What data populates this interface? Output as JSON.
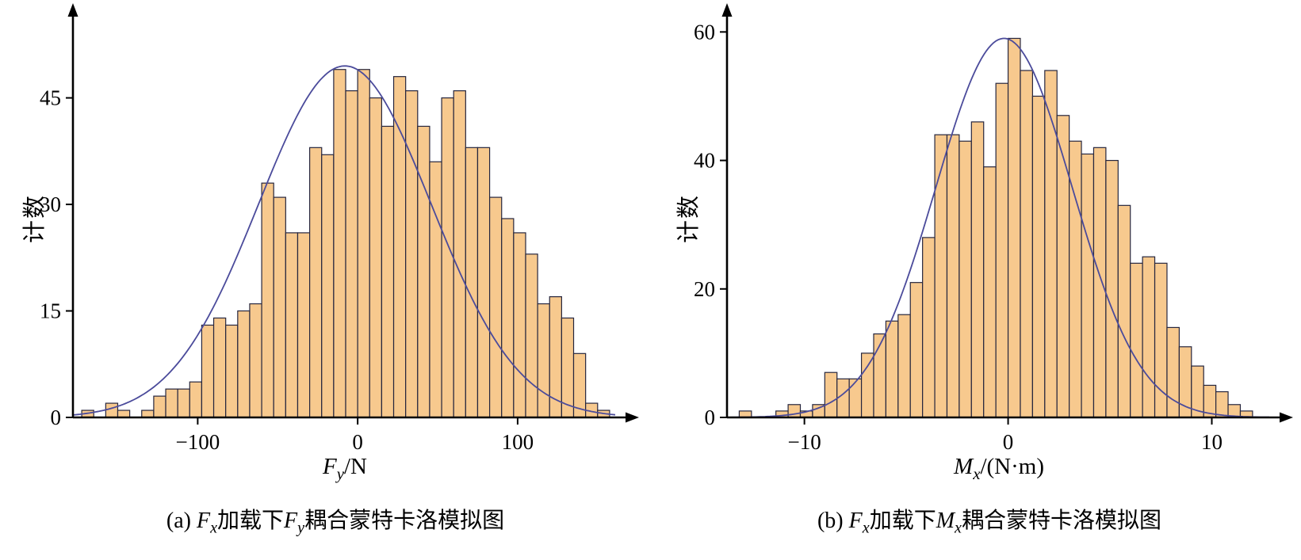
{
  "colors": {
    "background": "#ffffff",
    "bar_fill": "#f7c98e",
    "bar_stroke": "#26263e",
    "curve": "#4b4b9b",
    "axis": "#000000",
    "text": "#000000"
  },
  "chart_data": [
    {
      "type": "bar",
      "subtype": "histogram-with-gaussian-fit",
      "ylabel": "计数",
      "xlabel_parts": {
        "var": "F",
        "sub": "y",
        "rest": "/N"
      },
      "caption_parts": {
        "prefix": "(a) ",
        "var1": "F",
        "sub1": "x",
        "mid": "加载下",
        "var2": "F",
        "sub2": "y",
        "suffix": "耦合蒙特卡洛模拟图"
      },
      "x_ticks": [
        -100,
        0,
        100
      ],
      "y_ticks": [
        0,
        15,
        30,
        45
      ],
      "xlim": [
        -178,
        162
      ],
      "ylim": [
        0,
        57
      ],
      "grid": false,
      "legend": "none",
      "bin_start": -172.5,
      "bin_width": 7.5,
      "counts": [
        1,
        0,
        2,
        1,
        0,
        1,
        3,
        4,
        4,
        5,
        13,
        14,
        13,
        15,
        16,
        33,
        31,
        26,
        26,
        38,
        37,
        49,
        46,
        49,
        45,
        41,
        48,
        46,
        41,
        36,
        45,
        46,
        38,
        38,
        31,
        28,
        26,
        23,
        16,
        17,
        14,
        9,
        2,
        1
      ],
      "curve": {
        "amp": 49.5,
        "mean": -8,
        "sigma": 54
      }
    },
    {
      "type": "bar",
      "subtype": "histogram-with-gaussian-fit",
      "ylabel": "计数",
      "xlabel_parts": {
        "var": "M",
        "sub": "x",
        "rest": "/(N·m)"
      },
      "caption_parts": {
        "prefix": "(b) ",
        "var1": "F",
        "sub1": "x",
        "mid": "加载下",
        "var2": "M",
        "sub2": "x",
        "suffix": "耦合蒙特卡洛模拟图"
      },
      "x_ticks": [
        -10,
        0,
        10
      ],
      "y_ticks": [
        0,
        20,
        40,
        60
      ],
      "xlim": [
        -13.8,
        12.9
      ],
      "ylim": [
        0,
        63
      ],
      "grid": false,
      "legend": "none",
      "bin_start": -13.2,
      "bin_width": 0.6,
      "counts": [
        1,
        0,
        0,
        1,
        2,
        1,
        2,
        7,
        6,
        6,
        10,
        13,
        15,
        16,
        21,
        28,
        44,
        44,
        43,
        46,
        39,
        52,
        59,
        54,
        50,
        54,
        47,
        43,
        41,
        42,
        40,
        33,
        24,
        25,
        24,
        14,
        11,
        8,
        5,
        4,
        2,
        1
      ],
      "curve": {
        "amp": 59,
        "mean": -0.2,
        "sigma": 3.35
      }
    }
  ]
}
